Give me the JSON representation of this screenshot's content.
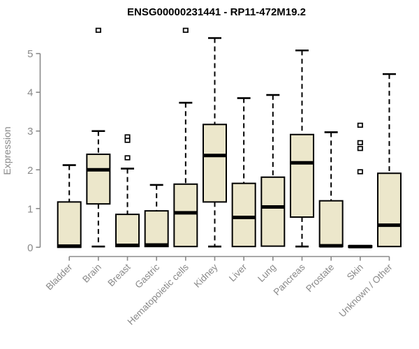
{
  "chart_data": {
    "type": "boxplot",
    "title": "ENSG00000231441 - RP11-472M19.2",
    "ylabel": "Expression",
    "xlabel": "",
    "ylim": [
      0,
      5.65
    ],
    "yticks": [
      0,
      1,
      2,
      3,
      4,
      5
    ],
    "grid": false,
    "legend": "none",
    "categories": [
      "Bladder",
      "Brain",
      "Breast",
      "Gastric",
      "Hematopoietic cells",
      "Kidney",
      "Liver",
      "Lung",
      "Pancreas",
      "Prostate",
      "Skin",
      "Unknown / Other"
    ],
    "series": [
      {
        "category": "Bladder",
        "whisker_low": 0.0,
        "q1": 0.0,
        "median": 0.03,
        "q3": 1.17,
        "whisker_high": 2.12,
        "outliers": []
      },
      {
        "category": "Brain",
        "whisker_low": 0.02,
        "q1": 1.12,
        "median": 2.0,
        "q3": 2.4,
        "whisker_high": 3.0,
        "outliers": [
          5.6
        ]
      },
      {
        "category": "Breast",
        "whisker_low": 0.02,
        "q1": 0.02,
        "median": 0.05,
        "q3": 0.85,
        "whisker_high": 2.03,
        "outliers": [
          2.85,
          2.76,
          2.31
        ]
      },
      {
        "category": "Gastric",
        "whisker_low": 0.02,
        "q1": 0.02,
        "median": 0.06,
        "q3": 0.94,
        "whisker_high": 1.61,
        "outliers": []
      },
      {
        "category": "Hematopoietic cells",
        "whisker_low": 0.02,
        "q1": 0.02,
        "median": 0.89,
        "q3": 1.63,
        "whisker_high": 3.73,
        "outliers": [
          5.6
        ]
      },
      {
        "category": "Kidney",
        "whisker_low": 0.02,
        "q1": 1.17,
        "median": 2.37,
        "q3": 3.17,
        "whisker_high": 5.4,
        "outliers": []
      },
      {
        "category": "Liver",
        "whisker_low": 0.02,
        "q1": 0.02,
        "median": 0.77,
        "q3": 1.65,
        "whisker_high": 3.85,
        "outliers": []
      },
      {
        "category": "Lung",
        "whisker_low": 0.03,
        "q1": 0.03,
        "median": 1.04,
        "q3": 1.81,
        "whisker_high": 3.93,
        "outliers": []
      },
      {
        "category": "Pancreas",
        "whisker_low": 0.02,
        "q1": 0.78,
        "median": 2.18,
        "q3": 2.91,
        "whisker_high": 5.08,
        "outliers": []
      },
      {
        "category": "Prostate",
        "whisker_low": 0.02,
        "q1": 0.02,
        "median": 0.04,
        "q3": 1.2,
        "whisker_high": 2.97,
        "outliers": []
      },
      {
        "category": "Skin",
        "whisker_low": 0.0,
        "q1": 0.0,
        "median": 0.02,
        "q3": 0.04,
        "whisker_high": 0.04,
        "outliers": [
          3.15,
          2.7,
          2.55,
          1.95
        ]
      },
      {
        "category": "Unknown / Other",
        "whisker_low": 0.02,
        "q1": 0.02,
        "median": 0.57,
        "q3": 1.91,
        "whisker_high": 4.47,
        "outliers": []
      }
    ],
    "colors": {
      "box_fill": "#ece7cb",
      "box_stroke": "#000000",
      "median": "#000000",
      "whisker": "#000000",
      "outlier_fill": "#ffffff",
      "outlier_stroke": "#000000",
      "axis": "#898989",
      "title": "#000000",
      "background": "#ffffff"
    }
  }
}
